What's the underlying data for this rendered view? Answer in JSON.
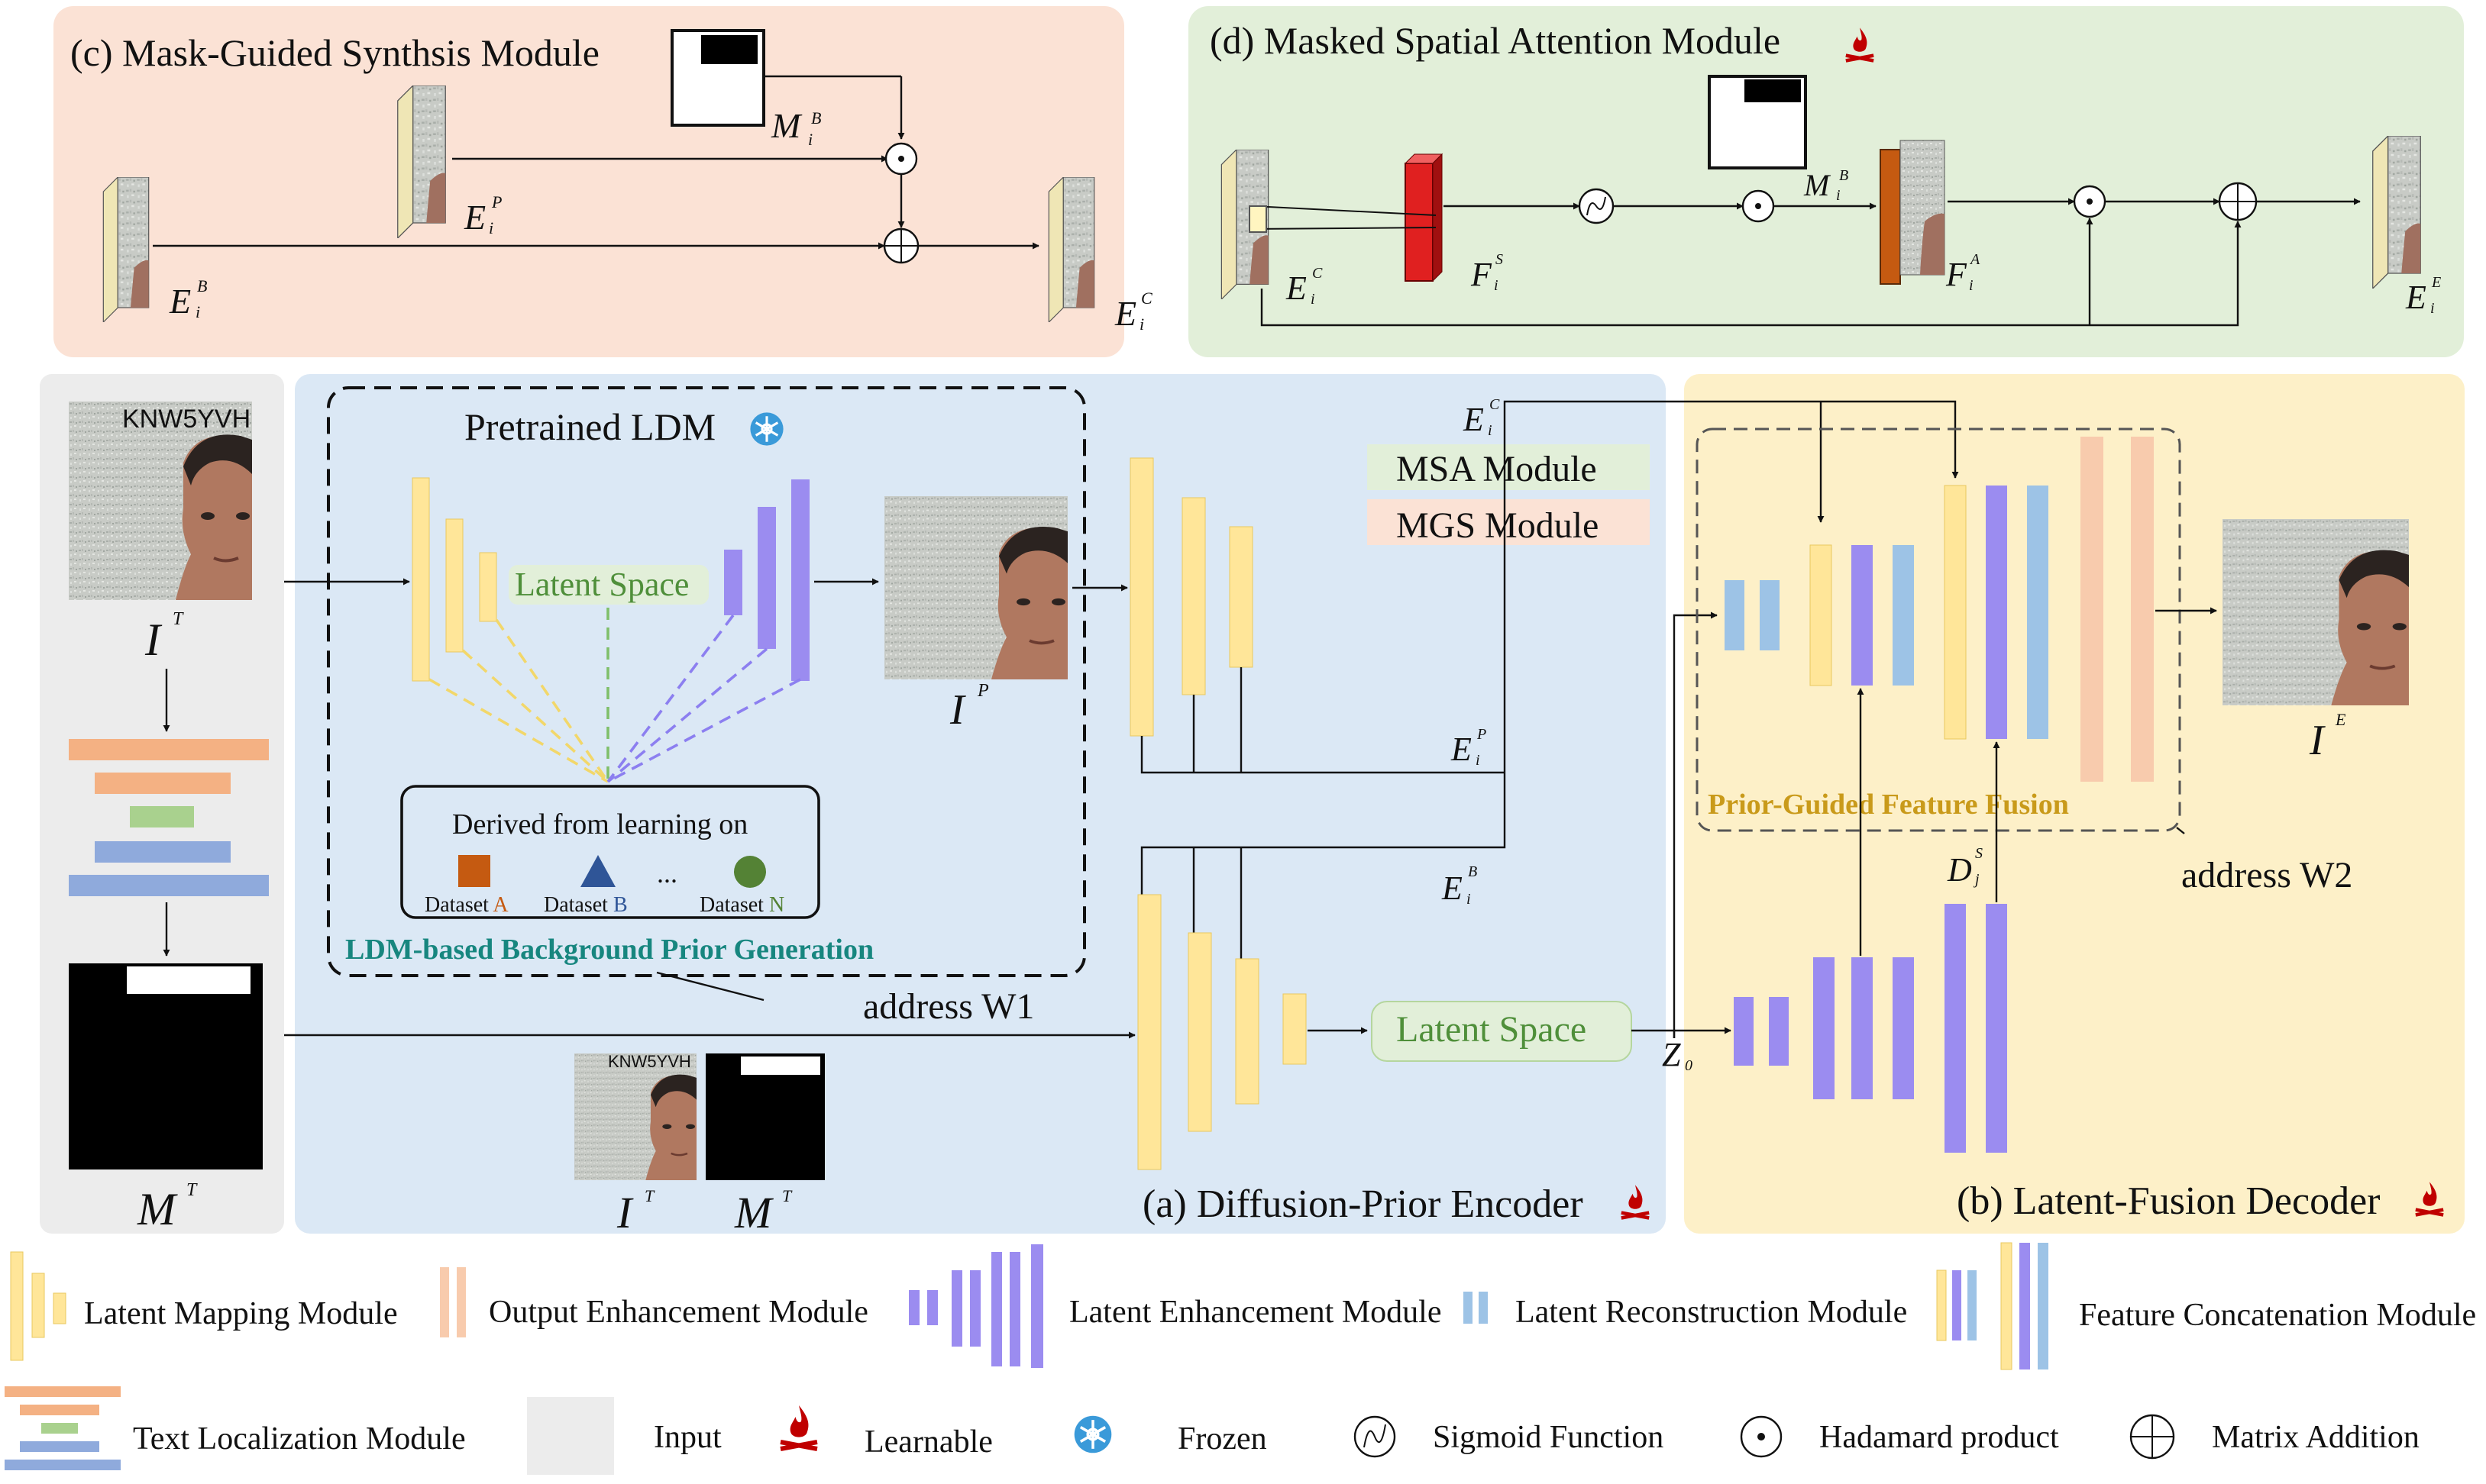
{
  "modules": {
    "mgs": {
      "title": "(c) Mask-Guided Synthsis Module"
    },
    "msa": {
      "title": "(d)  Masked Spatial Attention Module"
    }
  },
  "encoder": {
    "label": "(a) Diffusion-Prior Encoder",
    "pretrained_ldm": "Pretrained LDM",
    "latent_space": "Latent Space",
    "derived_from": "Derived from learning on",
    "datasets": [
      {
        "prefix": "Dataset ",
        "letter": "A",
        "color": "#c55a11"
      },
      {
        "prefix": "Dataset ",
        "letter": "B",
        "color": "#2f5597"
      },
      {
        "prefix": "Dataset ",
        "letter": "N",
        "color": "#548235"
      }
    ],
    "ellipsis": "...",
    "ldm_caption": "LDM-based Background Prior Generation",
    "address_w1": "address W1",
    "msa_module": "MSA Module",
    "mgs_module": "MGS Module",
    "encoder_latent": "Latent Space"
  },
  "decoder": {
    "label": "(b) Latent-Fusion Decoder",
    "fusion_caption": "Prior-Guided Feature Fusion",
    "address_w2": "address W2"
  },
  "input": {
    "plate_text": "KNW5YVH"
  },
  "legend": {
    "latent_mapping": "Latent Mapping Module",
    "output_enhancement": "Output Enhancement Module",
    "latent_enhancement": "Latent Enhancement Module",
    "latent_reconstruction": "Latent Reconstruction Module",
    "feature_concatenation": "Feature Concatenation Module",
    "text_localization": "Text Localization Module",
    "input": "Input",
    "learnable": "Learnable",
    "frozen": "Frozen",
    "sigmoid": "Sigmoid Function",
    "hadamard": "Hadamard product",
    "matrix_addition": "Matrix Addition"
  },
  "colors": {
    "mgs_bg": "#fbe2d5",
    "msa_bg": "#e2efd9",
    "encoder_bg": "#dbe8f5",
    "decoder_bg": "#fdf0c8",
    "input_bg": "#ececec",
    "yellow_block": "#ffe699",
    "purple_block": "#9b8cf0",
    "blue_block": "#9dc3e6",
    "salmon_block": "#f4b183",
    "green_block": "#a9d18e",
    "flame": "#c00000",
    "frozen": "#3a9ad9"
  }
}
